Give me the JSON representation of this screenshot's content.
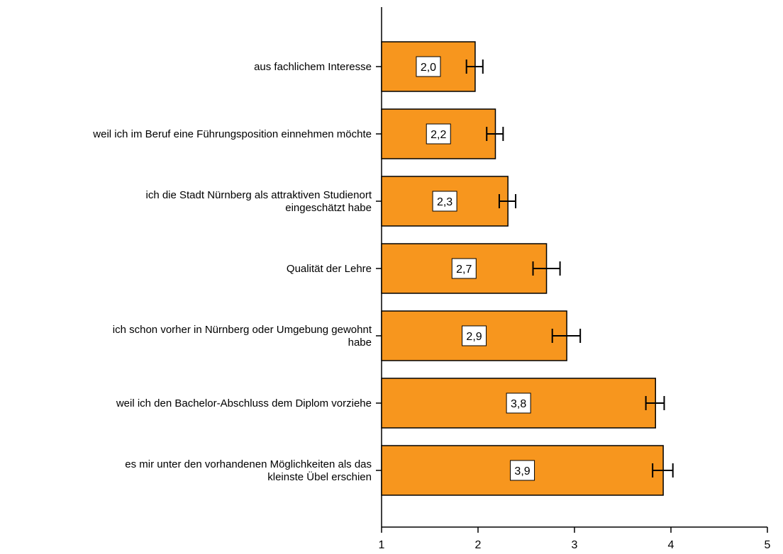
{
  "chart_data": {
    "type": "bar",
    "orientation": "horizontal",
    "categories": [
      [
        "aus fachlichem Interesse"
      ],
      [
        "weil ich im Beruf eine Führungsposition einnehmen möchte"
      ],
      [
        "ich die Stadt Nürnberg als attraktiven Studienort",
        "eingeschätzt habe"
      ],
      [
        "Qualität der Lehre"
      ],
      [
        "ich schon vorher in Nürnberg oder Umgebung gewohnt",
        "habe"
      ],
      [
        "weil ich den Bachelor-Abschluss dem Diplom vorziehe"
      ],
      [
        "es mir unter den vorhandenen Möglichkeiten als das",
        "kleinste Übel erschien"
      ]
    ],
    "values": [
      1.97,
      2.18,
      2.31,
      2.71,
      2.92,
      3.84,
      3.92
    ],
    "data_labels": [
      "2,0",
      "2,2",
      "2,3",
      "2,7",
      "2,9",
      "3,8",
      "3,9"
    ],
    "error_bars": [
      [
        1.88,
        2.05
      ],
      [
        2.09,
        2.26
      ],
      [
        2.22,
        2.39
      ],
      [
        2.57,
        2.85
      ],
      [
        2.77,
        3.06
      ],
      [
        3.74,
        3.93
      ],
      [
        3.81,
        4.02
      ]
    ],
    "x_ticks": [
      1,
      2,
      3,
      4,
      5
    ],
    "xlim": [
      1,
      5
    ],
    "title": "",
    "xlabel": "",
    "ylabel": "",
    "grid": false,
    "colors": {
      "bar": "#f7961e",
      "bar_stroke": "#000000",
      "label_box": "#ffffff"
    }
  }
}
